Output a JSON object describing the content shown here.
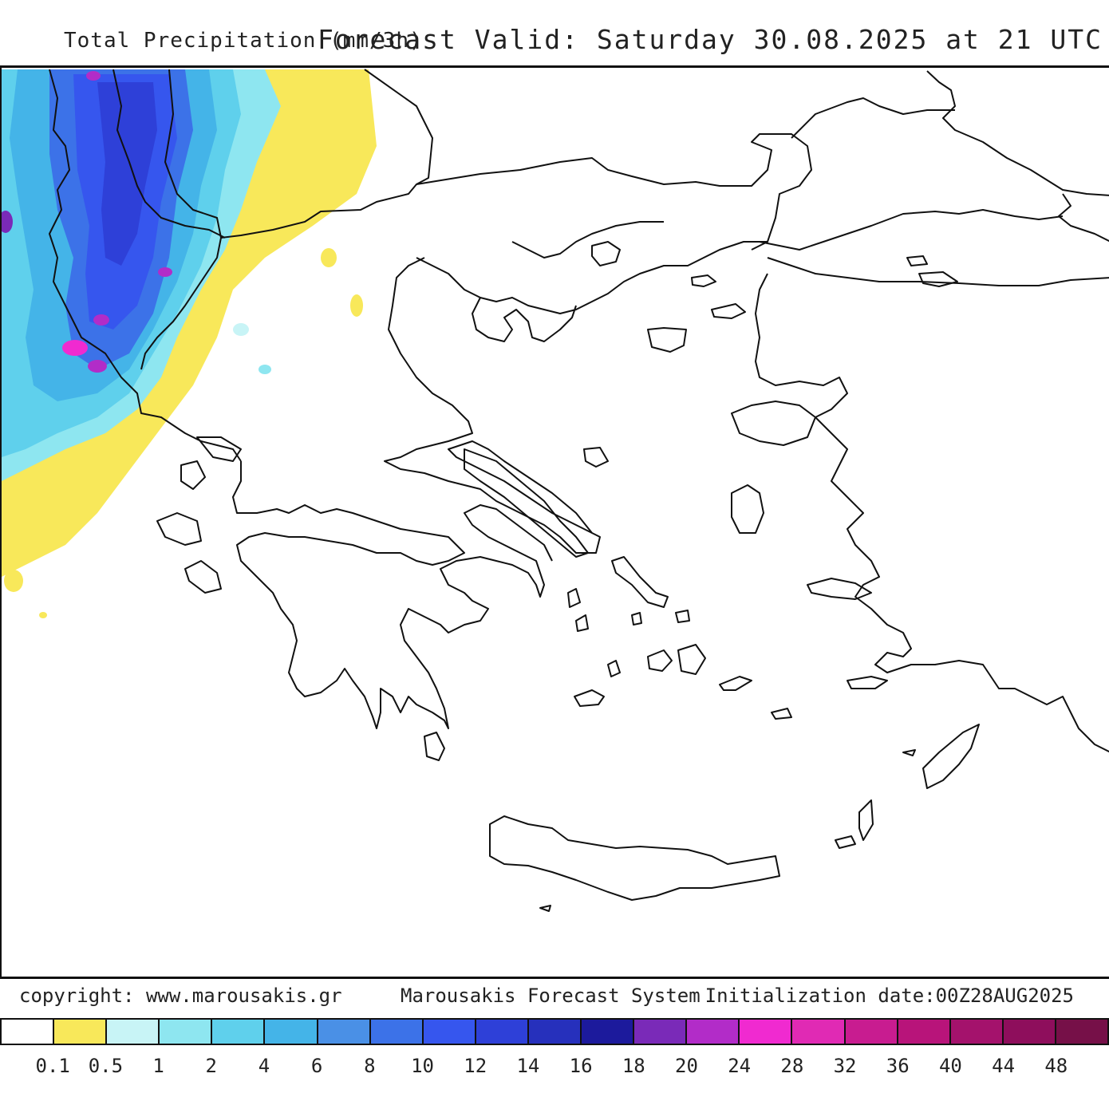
{
  "header": {
    "title_left": "Total Precipitation (mm/3h)",
    "title_right": "Forecast Valid:  Saturday 30.08.2025 at 21 UTC"
  },
  "footer": {
    "copyright": "copyright: www.marousakis.gr",
    "system": "Marousakis Forecast System",
    "init": "Initialization date:00Z28AUG2025"
  },
  "legend": {
    "colors": [
      "#ffffff",
      "#f8e85a",
      "#c8f4f6",
      "#8ee6f0",
      "#5fd0ec",
      "#44b4e8",
      "#4a90e6",
      "#3c72e8",
      "#3656ee",
      "#2e40d8",
      "#2630bc",
      "#1c1a9c",
      "#7a2ab8",
      "#b22cc8",
      "#f02ad0",
      "#e02ab4",
      "#c81c90",
      "#b8147a",
      "#a4126c",
      "#8e0e5c",
      "#761048"
    ],
    "labels": [
      "0.1",
      "0.5",
      "1",
      "2",
      "4",
      "6",
      "8",
      "10",
      "12",
      "14",
      "16",
      "18",
      "20",
      "24",
      "28",
      "32",
      "36",
      "40",
      "44",
      "48"
    ]
  }
}
